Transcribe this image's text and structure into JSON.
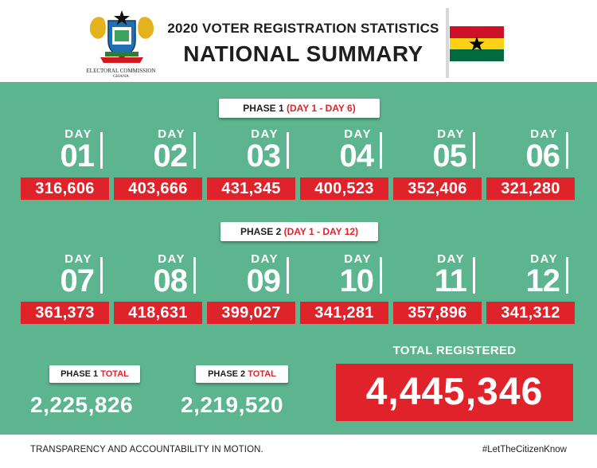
{
  "header": {
    "logo_text": "ELECTORAL COMMISSION",
    "logo_subtext": "GHANA",
    "title": "2020 VOTER REGISTRATION STATISTICS",
    "subtitle": "NATIONAL SUMMARY"
  },
  "colors": {
    "panel_green": "#5cb58f",
    "accent_red": "#e0232a",
    "flag_red": "#ce1126",
    "flag_gold": "#fcd116",
    "flag_green": "#006b3f",
    "flag_star": "#000000"
  },
  "phase1": {
    "label": "PHASE 1",
    "range": "(DAY 1 - DAY 6)",
    "days": [
      {
        "label": "DAY",
        "number": "01",
        "value": "316,606"
      },
      {
        "label": "DAY",
        "number": "02",
        "value": "403,666"
      },
      {
        "label": "DAY",
        "number": "03",
        "value": "431,345"
      },
      {
        "label": "DAY",
        "number": "04",
        "value": "400,523"
      },
      {
        "label": "DAY",
        "number": "05",
        "value": "352,406"
      },
      {
        "label": "DAY",
        "number": "06",
        "value": "321,280"
      }
    ]
  },
  "phase2": {
    "label": "PHASE 2",
    "range": "(DAY 1 - DAY 12)",
    "days": [
      {
        "label": "DAY",
        "number": "07",
        "value": "361,373"
      },
      {
        "label": "DAY",
        "number": "08",
        "value": "418,631"
      },
      {
        "label": "DAY",
        "number": "09",
        "value": "399,027"
      },
      {
        "label": "DAY",
        "number": "10",
        "value": "341,281"
      },
      {
        "label": "DAY",
        "number": "11",
        "value": "357,896"
      },
      {
        "label": "DAY",
        "number": "12",
        "value": "341,312"
      }
    ]
  },
  "totals": {
    "phase1_label": "PHASE 1",
    "phase1_total_word": "TOTAL",
    "phase1_value": "2,225,826",
    "phase2_label": "PHASE 2",
    "phase2_total_word": "TOTAL",
    "phase2_value": "2,219,520",
    "grand_label": "TOTAL REGISTERED",
    "grand_value": "4,445,346"
  },
  "footer": {
    "slogan": "TRANSPARENCY AND ACCOUNTABILITY IN MOTION.",
    "hashtag": "#LetTheCitizenKnow"
  }
}
